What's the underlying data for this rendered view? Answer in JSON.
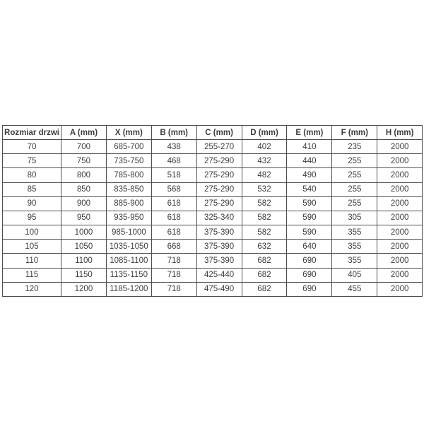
{
  "chart_data": {
    "type": "table",
    "title": "",
    "headers": [
      "Rozmiar drzwi",
      "A (mm)",
      "X (mm)",
      "B (mm)",
      "C (mm)",
      "D (mm)",
      "E (mm)",
      "F (mm)",
      "H (mm)"
    ],
    "rows": [
      [
        "70",
        "700",
        "685-700",
        "438",
        "255-270",
        "402",
        "410",
        "235",
        "2000"
      ],
      [
        "75",
        "750",
        "735-750",
        "468",
        "275-290",
        "432",
        "440",
        "255",
        "2000"
      ],
      [
        "80",
        "800",
        "785-800",
        "518",
        "275-290",
        "482",
        "490",
        "255",
        "2000"
      ],
      [
        "85",
        "850",
        "835-850",
        "568",
        "275-290",
        "532",
        "540",
        "255",
        "2000"
      ],
      [
        "90",
        "900",
        "885-900",
        "618",
        "275-290",
        "582",
        "590",
        "255",
        "2000"
      ],
      [
        "95",
        "950",
        "935-950",
        "618",
        "325-340",
        "582",
        "590",
        "305",
        "2000"
      ],
      [
        "100",
        "1000",
        "985-1000",
        "618",
        "375-390",
        "582",
        "590",
        "355",
        "2000"
      ],
      [
        "105",
        "1050",
        "1035-1050",
        "668",
        "375-390",
        "632",
        "640",
        "355",
        "2000"
      ],
      [
        "110",
        "1100",
        "1085-1100",
        "718",
        "375-390",
        "682",
        "690",
        "355",
        "2000"
      ],
      [
        "115",
        "1150",
        "1135-1150",
        "718",
        "425-440",
        "682",
        "690",
        "405",
        "2000"
      ],
      [
        "120",
        "1200",
        "1185-1200",
        "718",
        "475-490",
        "682",
        "690",
        "455",
        "2000"
      ]
    ],
    "layout": {
      "grid": true,
      "header_bold": true,
      "rows_count": 11,
      "columns_count": 9
    },
    "colors": {
      "background": "#ffffff",
      "border": "#4e4e4e",
      "text": "#3d3d3d"
    }
  }
}
